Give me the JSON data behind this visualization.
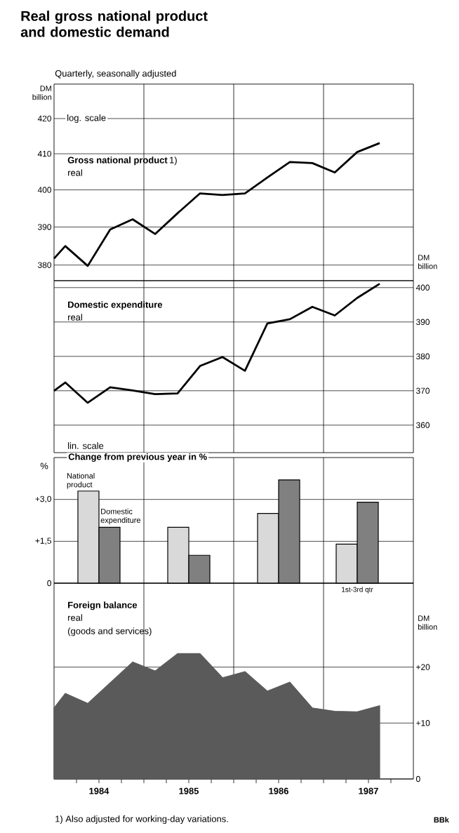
{
  "chart_data": [
    {
      "type": "line",
      "title": "Real gross national product and domestic demand",
      "subtitle": "Quarterly, seasonally adjusted",
      "ylabel": "DM billion",
      "annotations": [
        "1)",
        "real",
        "log. scale"
      ],
      "log": true,
      "grid": "y",
      "tick_labels": "y",
      "xlim": [
        1984,
        1988
      ],
      "ylim": [
        376,
        430
      ],
      "yticks": [
        380,
        390,
        400,
        410,
        420
      ],
      "ref_lines": [
        {
          "axis": "x",
          "value": 1985
        },
        {
          "axis": "x",
          "value": 1986
        },
        {
          "axis": "x",
          "value": 1987
        }
      ],
      "x": [
        1984,
        1984.125,
        1984.375,
        1984.625,
        1984.875,
        1985.125,
        1985.375,
        1985.625,
        1985.875,
        1986.125,
        1986.375,
        1986.625,
        1986.875,
        1987.125,
        1987.375,
        1987.625
      ],
      "series": [
        {
          "name": "Gross national product",
          "color": "#000000",
          "values": [
            381.7,
            385,
            379.8,
            389.4,
            392.1,
            388.2,
            393.7,
            399.1,
            398.7,
            399.1,
            403.4,
            407.7,
            407.4,
            404.8,
            410.5,
            413.0
          ]
        }
      ]
    },
    {
      "type": "line",
      "ylabel": "DM billion",
      "annotations": [
        "real",
        "lin. scale"
      ],
      "grid": "y",
      "tick_labels": "y",
      "xlim": [
        1984,
        1988
      ],
      "ylim": [
        352,
        402
      ],
      "yticks": [
        360,
        370,
        380,
        390,
        400
      ],
      "ref_lines": [
        {
          "axis": "x",
          "value": 1985
        },
        {
          "axis": "x",
          "value": 1986
        },
        {
          "axis": "x",
          "value": 1987
        }
      ],
      "x": [
        1984,
        1984.125,
        1984.375,
        1984.625,
        1984.875,
        1985.125,
        1985.375,
        1985.625,
        1985.875,
        1986.125,
        1986.375,
        1986.625,
        1986.875,
        1987.125,
        1987.375,
        1987.625
      ],
      "series": [
        {
          "name": "Domestic expenditure",
          "color": "#000000",
          "values": [
            370.0,
            372.4,
            366.5,
            371.0,
            370.1,
            369.0,
            369.2,
            377.2,
            379.8,
            375.8,
            389.6,
            390.8,
            394.4,
            391.9,
            397.0,
            401.1
          ]
        }
      ]
    },
    {
      "type": "bar",
      "title": "Change from previous year in %",
      "ylabel": "%",
      "annotations": [
        "1st-3rd qtr"
      ],
      "grid": "y",
      "tick_labels": "y",
      "xlim": [
        1984,
        1988
      ],
      "ylim": [
        0,
        4.5
      ],
      "yticks": [
        0,
        {
          "value": 1.5,
          "label": "+1,5"
        },
        {
          "value": 3,
          "label": "+3,0"
        }
      ],
      "ref_lines": [
        {
          "axis": "x",
          "value": 1985
        },
        {
          "axis": "x",
          "value": 1986
        },
        {
          "axis": "x",
          "value": 1987
        }
      ],
      "x": [
        1984.5,
        1985.5,
        1986.5,
        1987.375
      ],
      "series": [
        {
          "name": "National product",
          "color": "#d9d9d9",
          "values": [
            3.3,
            2.0,
            2.5,
            1.4
          ]
        },
        {
          "name": "Domestic expenditure",
          "color": "#808080",
          "values": [
            2.0,
            1.0,
            3.7,
            2.9
          ]
        }
      ]
    },
    {
      "type": "area",
      "title": "Foreign balance",
      "ylabel": "DM billion",
      "annotations": [
        "real",
        "(goods and services)",
        "1) Also adjusted for working-day variations.",
        "BBk"
      ],
      "grid": "y",
      "xlim": [
        1984,
        1988
      ],
      "ylim": [
        0,
        35
      ],
      "yticks": [
        0,
        {
          "value": 10,
          "label": "+10"
        },
        {
          "value": 20,
          "label": "+20"
        }
      ],
      "xticks": [
        {
          "value": 1984.25,
          "label": null
        },
        {
          "value": 1984.5,
          "label": "1984"
        },
        {
          "value": 1984.75,
          "label": null
        },
        {
          "value": 1985,
          "label": null
        },
        {
          "value": 1985.25,
          "label": null
        },
        {
          "value": 1985.5,
          "label": "1985"
        },
        {
          "value": 1985.75,
          "label": null
        },
        {
          "value": 1986,
          "label": null
        },
        {
          "value": 1986.25,
          "label": null
        },
        {
          "value": 1986.5,
          "label": "1986"
        },
        {
          "value": 1986.75,
          "label": null
        },
        {
          "value": 1987,
          "label": null
        },
        {
          "value": 1987.25,
          "label": null
        },
        {
          "value": 1987.5,
          "label": "1987"
        },
        {
          "value": 1987.75,
          "label": null
        }
      ],
      "ref_lines": [
        {
          "axis": "x",
          "value": 1985
        },
        {
          "axis": "x",
          "value": 1986
        },
        {
          "axis": "x",
          "value": 1987
        }
      ],
      "x": [
        1984,
        1984.125,
        1984.375,
        1984.625,
        1984.875,
        1985.125,
        1985.375,
        1985.625,
        1985.875,
        1986.125,
        1986.375,
        1986.625,
        1986.875,
        1987.125,
        1987.375,
        1987.625
      ],
      "series": [
        {
          "color": "#5a5a5a",
          "values": [
            12.7,
            15.3,
            13.5,
            17.2,
            20.9,
            19.3,
            22.4,
            22.4,
            18.1,
            19.2,
            15.7,
            17.3,
            12.7,
            12.1,
            12.0,
            13.1
          ]
        }
      ]
    }
  ]
}
